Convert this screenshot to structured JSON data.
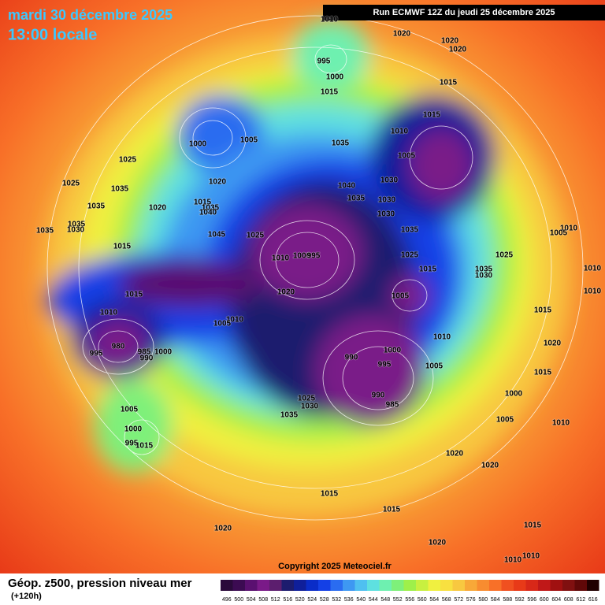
{
  "header": {
    "date": "mardi 30 décembre 2025",
    "time": "13:00 locale",
    "run": "Run ECMWF 12Z du jeudi 25 décembre 2025"
  },
  "copyright": "Copyright 2025 Meteociel.fr",
  "legend": {
    "title": "Géop. z500, pression niveau mer",
    "subtitle": "(+120h)",
    "scale": {
      "values": [
        496,
        500,
        504,
        508,
        512,
        516,
        520,
        524,
        528,
        532,
        536,
        540,
        544,
        548,
        552,
        556,
        560,
        564,
        568,
        572,
        576,
        580,
        584,
        588,
        592,
        596,
        600,
        604,
        608,
        612,
        616
      ],
      "colors": [
        "#2a0a3a",
        "#3c0b52",
        "#5a1070",
        "#7a1a88",
        "#5c1e6e",
        "#1c1c6e",
        "#0f1f9a",
        "#0a2cc8",
        "#1440e6",
        "#2a6cf0",
        "#3e98f2",
        "#4fc0f0",
        "#5ee0e0",
        "#6ef0b0",
        "#7ef07a",
        "#9ef04a",
        "#c8f040",
        "#f0f040",
        "#f8e040",
        "#f8c840",
        "#f8a838",
        "#f88c30",
        "#f87028",
        "#f05020",
        "#e83a18",
        "#d82818",
        "#c01818",
        "#a01010",
        "#801010",
        "#600808",
        "#200000"
      ]
    }
  },
  "pressure_labels": [
    1020,
    1020,
    1020,
    995,
    1000,
    1015,
    1015,
    1015,
    1010,
    1005,
    1000,
    1005,
    1035,
    1025,
    1025,
    1035,
    1020,
    1040,
    1030,
    1035,
    1030,
    1030,
    1015,
    1035,
    1040,
    1035,
    1020,
    1035,
    1030,
    1035,
    1045,
    1025,
    1035,
    1010,
    1005,
    1015,
    1010,
    1000,
    995,
    1025,
    1025,
    1015,
    1035,
    1030,
    1010,
    1020,
    1005,
    1015,
    1010,
    1015,
    1010,
    1010,
    1005,
    1010,
    980,
    995,
    985,
    990,
    1000,
    1000,
    1020,
    990,
    995,
    1005,
    1015,
    1000,
    990,
    985,
    1025,
    1030,
    1035,
    1005,
    1005,
    1010,
    1000,
    995,
    1015,
    1020,
    1020,
    1015,
    1015,
    1020,
    1015,
    1020,
    1010,
    1010,
    1010
  ]
}
